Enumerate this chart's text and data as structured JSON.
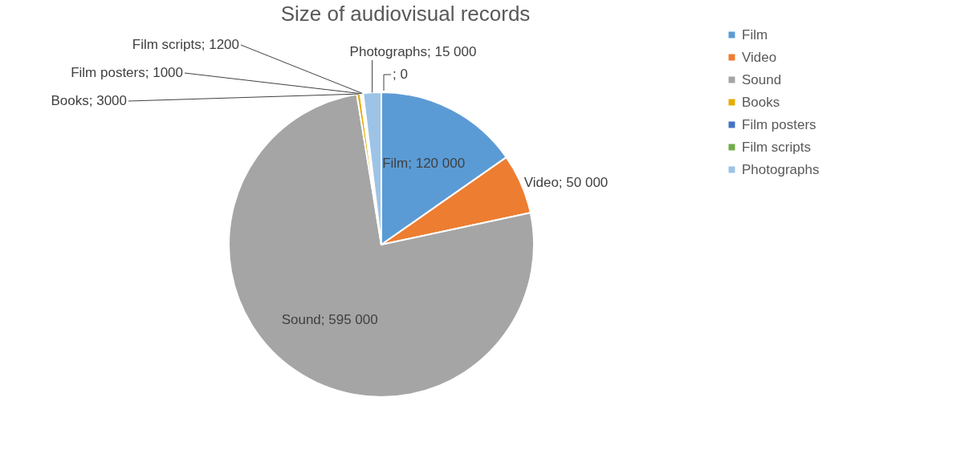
{
  "chart_data": {
    "type": "pie",
    "title": "Size of audiovisual records",
    "categories": [
      "Film",
      "Video",
      "Sound",
      "Books",
      "Film posters",
      "Film scripts",
      "Photographs",
      null
    ],
    "values": [
      120000,
      50000,
      595000,
      3000,
      1000,
      1200,
      15000,
      0
    ],
    "colors": [
      "#5b9bd5",
      "#ed7d31",
      "#a5a5a5",
      "#e6ac00",
      "#4472c4",
      "#70ad47",
      "#9dc3e6",
      "#255e91"
    ],
    "value_labels": [
      "Film; 120 000",
      "Video; 50 000",
      "Sound; 595 000",
      "Books; 3000",
      "Film posters; 1000",
      "Film scripts; 1200",
      "Photographs; 15 000",
      "; 0"
    ],
    "legend": "right"
  }
}
